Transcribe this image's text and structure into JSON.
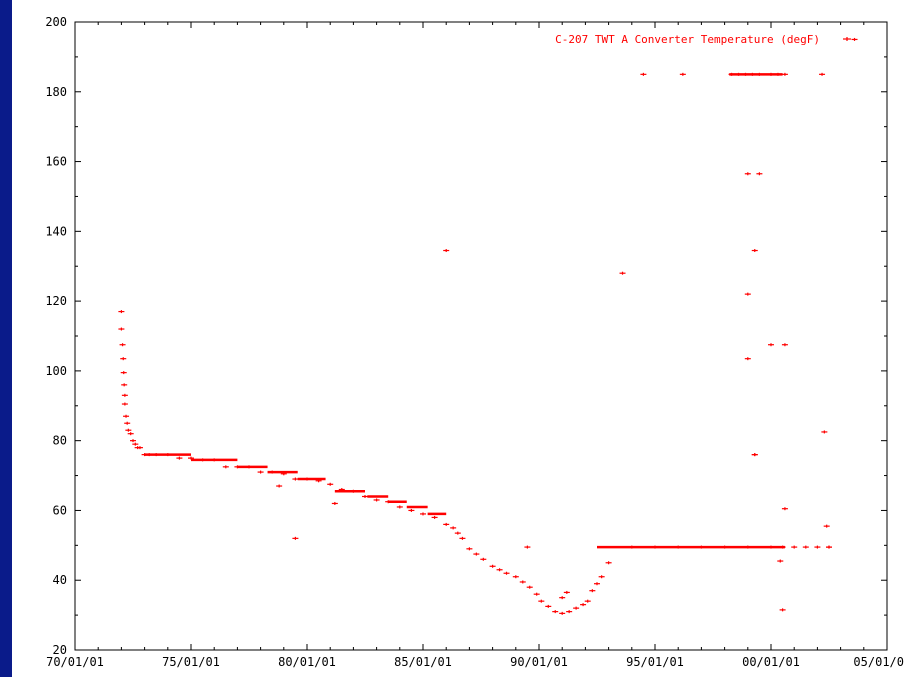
{
  "colors": {
    "series": "#ff0000",
    "axes": "#000000",
    "plot_background": "#ffffff",
    "slide_background": "#000018"
  },
  "chart_data": {
    "type": "scatter",
    "title": "",
    "xlabel": "",
    "ylabel": "",
    "legend": {
      "position": "top-right",
      "entries": [
        "C-207 TWT A Converter Temperature (degF)"
      ]
    },
    "x_tick_labels": [
      "70/01/01",
      "75/01/01",
      "80/01/01",
      "85/01/01",
      "90/01/01",
      "95/01/01",
      "00/01/01",
      "05/01/0"
    ],
    "x_tick_years": [
      1970,
      1975,
      1980,
      1985,
      1990,
      1995,
      2000,
      2005
    ],
    "xlim": [
      1970,
      2005
    ],
    "ylim": [
      20,
      200
    ],
    "y_ticks": [
      20,
      40,
      60,
      80,
      100,
      120,
      140,
      160,
      180,
      200
    ],
    "grid": false,
    "series": [
      {
        "name": "C-207 TWT A Converter Temperature (degF)",
        "x": [
          1972.0,
          1972.0,
          1972.05,
          1972.08,
          1972.1,
          1972.12,
          1972.15,
          1972.15,
          1972.2,
          1972.25,
          1972.3,
          1972.4,
          1972.5,
          1972.6,
          1972.7,
          1972.8,
          1973.0,
          1973.2,
          1973.5,
          1974.0,
          1974.5,
          1975.0,
          1975.5,
          1976.0,
          1976.5,
          1977.0,
          1977.5,
          1978.0,
          1978.5,
          1979.0,
          1979.5,
          1980.0,
          1980.5,
          1981.0,
          1981.5,
          1982.0,
          1982.5,
          1983.0,
          1983.5,
          1984.0,
          1984.5,
          1985.0,
          1985.5,
          1986.0,
          1986.3,
          1986.5,
          1986.7,
          1987.0,
          1987.3,
          1987.6,
          1988.0,
          1988.3,
          1988.6,
          1989.0,
          1989.3,
          1989.6,
          1989.9,
          1990.1,
          1990.4,
          1990.7,
          1991.0,
          1991.3,
          1991.6,
          1991.9,
          1992.1,
          1992.3,
          1992.5,
          1992.7,
          1993.0,
          1994.0,
          1995.0,
          1996.0,
          1997.0,
          1998.0,
          1999.0,
          2000.0,
          2000.5,
          2001.0,
          2001.5,
          2002.0,
          2002.5,
          1978.8,
          1979.5,
          1981.2,
          1986.0,
          1989.5,
          1993.6,
          1994.5,
          1996.2,
          1998.3,
          1998.6,
          1998.9,
          1999.2,
          1999.5,
          2000.0,
          2000.3,
          2000.6,
          2002.2,
          1999.0,
          1999.5,
          1999.3,
          1999.0,
          1999.3,
          1999.0,
          2000.0,
          2000.6,
          1999.3,
          2000.4,
          2000.6,
          2002.3,
          2002.4,
          2000.5,
          2002.5,
          2003.6,
          1991.0,
          1991.2
        ],
        "y": [
          117,
          112,
          107.5,
          103.5,
          99.5,
          96,
          93,
          90.5,
          87,
          85,
          83,
          82,
          80,
          79,
          78,
          78,
          76,
          76,
          76,
          76,
          75,
          75,
          74.5,
          74.5,
          72.5,
          72.5,
          72.5,
          71,
          71,
          70.5,
          69,
          69,
          68.5,
          67.5,
          66,
          65.5,
          64,
          63,
          62.5,
          61,
          60,
          59,
          58,
          56,
          55,
          53.5,
          52,
          49,
          47.5,
          46,
          44,
          43,
          42,
          41,
          39.5,
          38,
          36,
          34,
          32.5,
          31,
          30.5,
          31,
          32,
          33,
          34,
          37,
          39,
          41,
          45,
          49.5,
          49.5,
          49.5,
          49.5,
          49.5,
          49.5,
          49.5,
          49.5,
          49.5,
          49.5,
          49.5,
          49.5,
          67,
          52,
          62,
          134.5,
          49.5,
          128,
          185,
          185,
          185,
          185,
          185,
          185,
          185,
          185,
          185,
          185,
          185,
          156.5,
          156.5,
          134.5,
          122,
          76,
          103.5,
          107.5,
          107.5,
          76,
          45.5,
          60.5,
          82.5,
          55.5,
          31.5,
          49.5,
          195,
          35,
          36.5
        ]
      }
    ]
  }
}
